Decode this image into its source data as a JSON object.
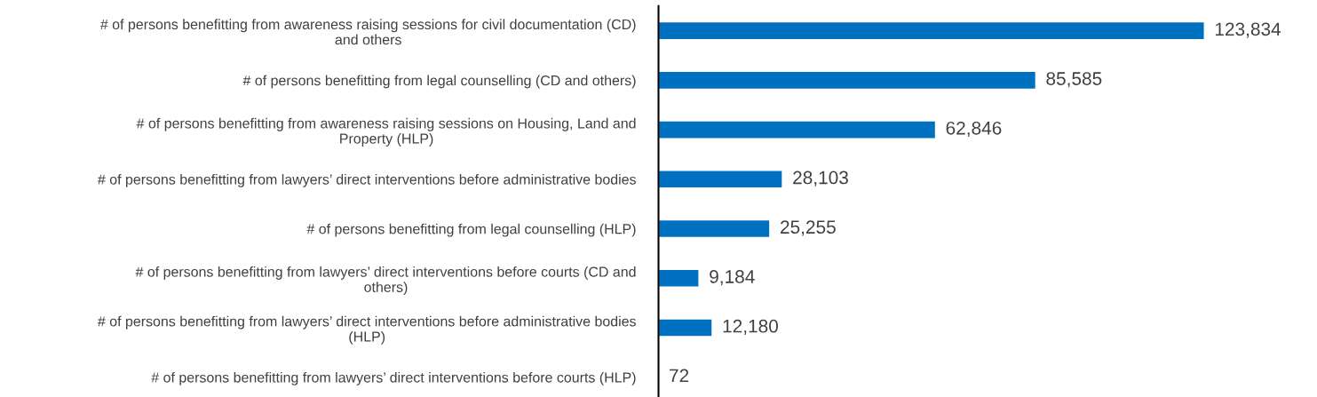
{
  "chart_data": {
    "type": "bar",
    "orientation": "horizontal",
    "value_labels": [
      "123,834",
      "85,585",
      "62,846",
      "28,103",
      "25,255",
      "9,184",
      "12,180",
      "72"
    ],
    "grid": false,
    "legend": false,
    "categories": [
      "# of persons benefitting from awareness raising sessions for civil documentation (CD)\nand others",
      "# of persons benefitting from legal counselling (CD and others)",
      "# of persons benefitting from awareness raising sessions on Housing, Land and\nProperty (HLP)",
      "# of persons benefitting from lawyers’ direct interventions before administrative bodies",
      "# of persons benefitting from legal counselling (HLP)",
      "# of persons benefitting from lawyers’ direct interventions before courts (CD and\nothers)",
      "# of persons benefitting from lawyers’ direct interventions before administrative bodies\n(HLP)",
      "# of persons benefitting from lawyers’ direct interventions before courts (HLP)"
    ],
    "values": [
      123834,
      85585,
      62846,
      28103,
      25255,
      9184,
      12180,
      72
    ],
    "color": "#0070c0"
  }
}
